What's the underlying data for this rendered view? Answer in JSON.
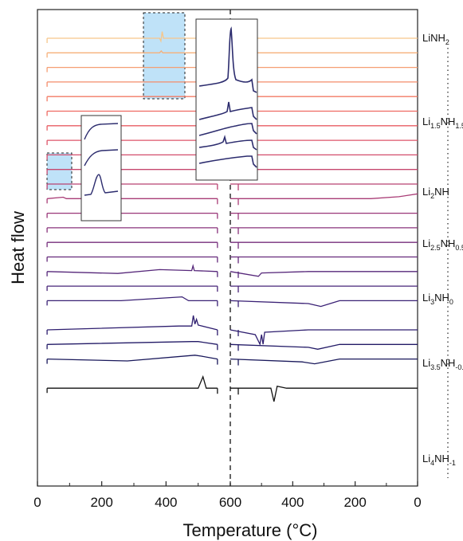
{
  "chart_data": {
    "type": "line",
    "xlabel": "Temperature (°C)",
    "ylabel": "Heat flow",
    "x_ticks_heating": [
      "0",
      "200",
      "400",
      "600"
    ],
    "x_ticks_cooling": [
      "400",
      "200",
      "0"
    ],
    "xlim_heating": [
      0,
      600
    ],
    "xlim_cooling": [
      600,
      0
    ],
    "grid": false,
    "compositions": [
      {
        "label": "LiNH",
        "sub": "2",
        "tail": ""
      },
      {
        "label": "Li",
        "sub": "1.5",
        "tail": "NH",
        "sub2": "1.5"
      },
      {
        "label": "Li",
        "sub": "2",
        "tail": "NH"
      },
      {
        "label": "Li",
        "sub": "2.5",
        "tail": "NH",
        "sub2": "0.5"
      },
      {
        "label": "Li",
        "sub": "3",
        "tail": "NH",
        "sub2": "0"
      },
      {
        "label": "Li",
        "sub": "3.5",
        "tail": "NH",
        "sub2": "-0.5"
      },
      {
        "label": "Li",
        "sub": "4",
        "tail": "NH",
        "sub2": "-1"
      }
    ],
    "series": [
      {
        "color": "#f6c68a",
        "offset": 0,
        "heat": [
          [
            30,
            0
          ],
          [
            380,
            0
          ],
          [
            384,
            -6
          ],
          [
            388,
            14
          ],
          [
            392,
            0
          ],
          [
            560,
            0
          ]
        ],
        "cool": [
          [
            600,
            0
          ],
          [
            0,
            0
          ]
        ]
      },
      {
        "color": "#f6b07a",
        "offset": 1,
        "heat": [
          [
            30,
            0
          ],
          [
            380,
            0
          ],
          [
            385,
            4
          ],
          [
            390,
            0
          ],
          [
            560,
            0
          ]
        ],
        "cool": [
          [
            600,
            0
          ],
          [
            0,
            0
          ]
        ]
      },
      {
        "color": "#f59e72",
        "offset": 2,
        "heat": [
          [
            30,
            0
          ],
          [
            560,
            0
          ]
        ],
        "cool": [
          [
            600,
            0
          ],
          [
            0,
            0
          ]
        ]
      },
      {
        "color": "#f48c6a",
        "offset": 3,
        "heat": [
          [
            30,
            0
          ],
          [
            560,
            0
          ]
        ],
        "cool": [
          [
            600,
            0
          ],
          [
            0,
            0
          ]
        ]
      },
      {
        "color": "#f37b64",
        "offset": 4,
        "heat": [
          [
            30,
            0
          ],
          [
            560,
            0
          ]
        ],
        "cool": [
          [
            600,
            0
          ],
          [
            0,
            0
          ]
        ]
      },
      {
        "color": "#ee6a62",
        "offset": 5,
        "heat": [
          [
            30,
            0
          ],
          [
            560,
            0
          ]
        ],
        "cool": [
          [
            600,
            0
          ],
          [
            0,
            0
          ]
        ]
      },
      {
        "color": "#e85d63",
        "offset": 6,
        "heat": [
          [
            30,
            0
          ],
          [
            560,
            0
          ]
        ],
        "cool": [
          [
            600,
            0
          ],
          [
            0,
            0
          ]
        ]
      },
      {
        "color": "#de5468",
        "offset": 7,
        "heat": [
          [
            30,
            0
          ],
          [
            560,
            0
          ]
        ],
        "cool": [
          [
            600,
            0
          ],
          [
            0,
            0
          ]
        ]
      },
      {
        "color": "#d34d6c",
        "offset": 8,
        "heat": [
          [
            30,
            0
          ],
          [
            560,
            0
          ]
        ],
        "cool": [
          [
            600,
            0
          ],
          [
            0,
            0
          ]
        ]
      },
      {
        "color": "#c6476f",
        "offset": 9,
        "heat": [
          [
            30,
            0
          ],
          [
            560,
            0
          ]
        ],
        "cool": [
          [
            600,
            0
          ],
          [
            0,
            0
          ]
        ]
      },
      {
        "color": "#b84272",
        "offset": 10,
        "heat": [
          [
            30,
            0
          ],
          [
            560,
            0
          ]
        ],
        "cool": [
          [
            600,
            0
          ],
          [
            0,
            0
          ]
        ]
      },
      {
        "color": "#a93c76",
        "offset": 11,
        "heat": [
          [
            30,
            0
          ],
          [
            80,
            3
          ],
          [
            90,
            0
          ],
          [
            560,
            0
          ]
        ],
        "cool": [
          [
            600,
            0
          ],
          [
            150,
            0
          ],
          [
            60,
            4
          ],
          [
            0,
            10
          ]
        ]
      },
      {
        "color": "#993779",
        "offset": 12,
        "heat": [
          [
            30,
            0
          ],
          [
            560,
            0
          ]
        ],
        "cool": [
          [
            600,
            0
          ],
          [
            0,
            0
          ]
        ]
      },
      {
        "color": "#88327b",
        "offset": 13,
        "heat": [
          [
            30,
            0
          ],
          [
            560,
            0
          ]
        ],
        "cool": [
          [
            600,
            0
          ],
          [
            0,
            0
          ]
        ]
      },
      {
        "color": "#762e7c",
        "offset": 14,
        "heat": [
          [
            30,
            0
          ],
          [
            560,
            0
          ]
        ],
        "cool": [
          [
            600,
            0
          ],
          [
            0,
            0
          ]
        ]
      },
      {
        "color": "#652a7b",
        "offset": 15,
        "heat": [
          [
            30,
            0
          ],
          [
            560,
            0
          ]
        ],
        "cool": [
          [
            600,
            0
          ],
          [
            0,
            0
          ]
        ]
      },
      {
        "color": "#56277a",
        "offset": 16,
        "heat": [
          [
            30,
            0
          ],
          [
            250,
            -4
          ],
          [
            380,
            4
          ],
          [
            480,
            2
          ],
          [
            484,
            12
          ],
          [
            488,
            2
          ],
          [
            560,
            0
          ]
        ],
        "cool": [
          [
            600,
            0
          ],
          [
            510,
            -10
          ],
          [
            500,
            -3
          ],
          [
            350,
            0
          ],
          [
            0,
            0
          ]
        ]
      },
      {
        "color": "#472478",
        "offset": 17,
        "heat": [
          [
            30,
            0
          ],
          [
            560,
            0
          ]
        ],
        "cool": [
          [
            600,
            0
          ],
          [
            0,
            0
          ]
        ]
      },
      {
        "color": "#3a2175",
        "offset": 18,
        "heat": [
          [
            30,
            0
          ],
          [
            260,
            0
          ],
          [
            450,
            8
          ],
          [
            470,
            0
          ],
          [
            560,
            0
          ]
        ],
        "cool": [
          [
            600,
            0
          ],
          [
            350,
            -6
          ],
          [
            310,
            -12
          ],
          [
            250,
            0
          ],
          [
            0,
            0
          ]
        ]
      },
      {
        "color": "#2e1e6f",
        "offset": 20,
        "heat": [
          [
            30,
            0
          ],
          [
            440,
            8
          ],
          [
            480,
            8
          ],
          [
            485,
            30
          ],
          [
            490,
            12
          ],
          [
            495,
            22
          ],
          [
            500,
            10
          ],
          [
            560,
            0
          ]
        ],
        "cool": [
          [
            600,
            0
          ],
          [
            520,
            -10
          ],
          [
            505,
            -30
          ],
          [
            500,
            -10
          ],
          [
            495,
            -30
          ],
          [
            490,
            -5
          ],
          [
            350,
            0
          ],
          [
            0,
            0
          ]
        ]
      },
      {
        "color": "#231b67",
        "offset": 21,
        "heat": [
          [
            30,
            0
          ],
          [
            480,
            6
          ],
          [
            500,
            6
          ],
          [
            560,
            0
          ]
        ],
        "cool": [
          [
            600,
            0
          ],
          [
            350,
            -6
          ],
          [
            320,
            -10
          ],
          [
            250,
            0
          ],
          [
            0,
            0
          ]
        ]
      },
      {
        "color": "#19185b",
        "offset": 22,
        "heat": [
          [
            30,
            0
          ],
          [
            280,
            -4
          ],
          [
            490,
            8
          ],
          [
            510,
            6
          ],
          [
            560,
            0
          ]
        ],
        "cool": [
          [
            600,
            0
          ],
          [
            370,
            -6
          ],
          [
            330,
            -10
          ],
          [
            250,
            0
          ],
          [
            0,
            0
          ]
        ]
      },
      {
        "color": "#111111",
        "offset": 24,
        "heat": [
          [
            30,
            0
          ],
          [
            500,
            0
          ],
          [
            515,
            24
          ],
          [
            525,
            0
          ],
          [
            560,
            0
          ]
        ],
        "cool": [
          [
            600,
            0
          ],
          [
            470,
            0
          ],
          [
            460,
            -28
          ],
          [
            450,
            4
          ],
          [
            420,
            0
          ],
          [
            0,
            0
          ]
        ]
      }
    ]
  }
}
